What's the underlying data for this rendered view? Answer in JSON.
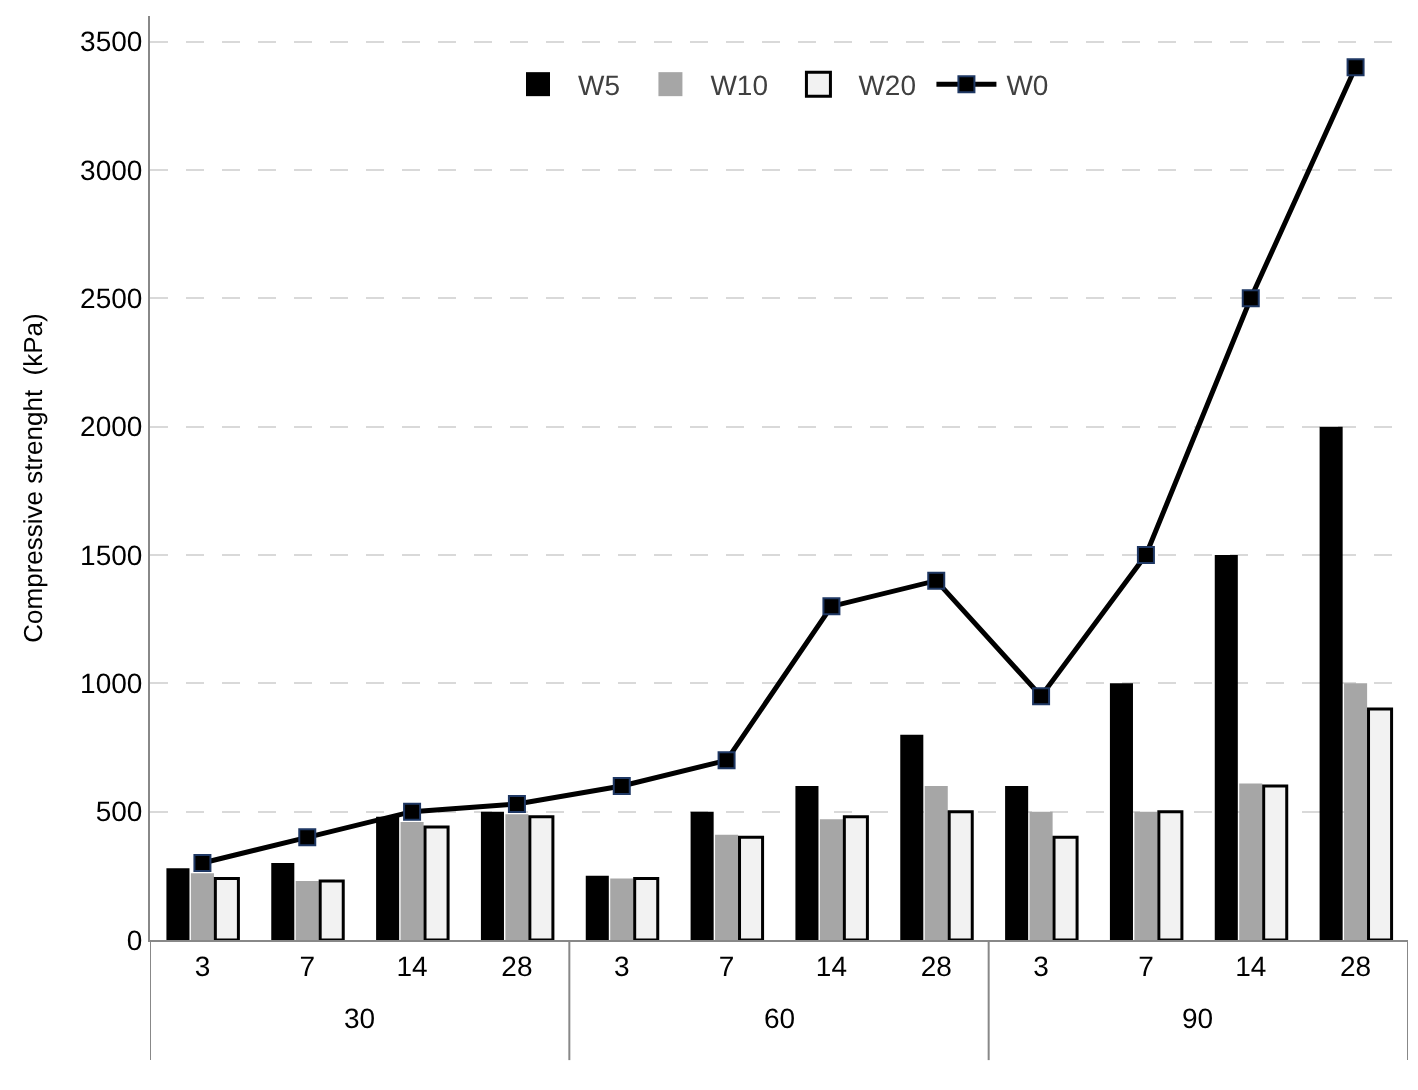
{
  "chart_data": {
    "type": "bar",
    "ylabel": "Compressive strenght  (kPa)",
    "categories": [
      "3",
      "7",
      "14",
      "28",
      "3",
      "7",
      "14",
      "28",
      "3",
      "7",
      "14",
      "28"
    ],
    "annotations": [
      "30",
      "60",
      "90"
    ],
    "series": [
      {
        "name": "W5",
        "color": "#000000",
        "values": [
          280,
          300,
          480,
          500,
          250,
          500,
          600,
          800,
          600,
          1000,
          1500,
          2000
        ]
      },
      {
        "name": "W10",
        "color": "#a6a6a6",
        "values": [
          260,
          230,
          460,
          490,
          240,
          410,
          470,
          600,
          500,
          500,
          610,
          1000
        ]
      },
      {
        "name": "W20",
        "color": "#f2f2f2",
        "values": [
          240,
          230,
          440,
          480,
          240,
          400,
          480,
          500,
          400,
          500,
          600,
          900
        ]
      },
      {
        "name": "W0",
        "type": "line",
        "color": "#000000",
        "marker": "square",
        "values": [
          300,
          400,
          500,
          530,
          600,
          700,
          1300,
          1400,
          950,
          1500,
          2500,
          3400
        ]
      }
    ],
    "ylim": [
      0,
      3600
    ],
    "yticks": [
      0,
      500,
      1000,
      1500,
      2000,
      2500,
      3000,
      3500
    ],
    "grid": "y",
    "legend": "top"
  }
}
